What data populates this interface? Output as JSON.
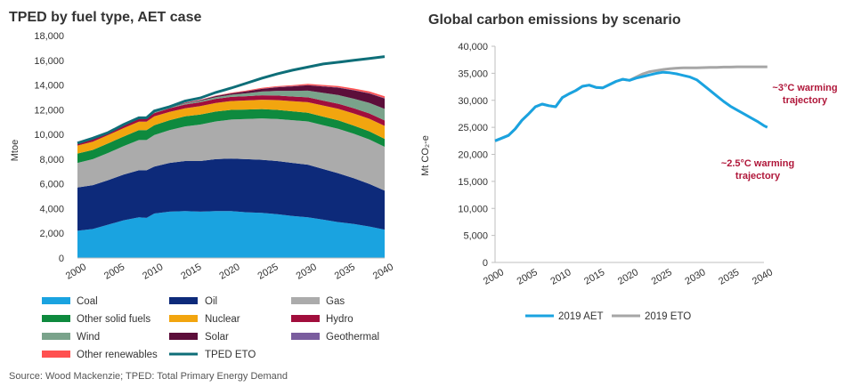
{
  "source_note": "Source: Wood Mackenzie; TPED: Total Primary Energy Demand",
  "chart_data": [
    {
      "type": "area",
      "stacked": true,
      "title": "TPED by fuel type, AET case",
      "xlabel": "",
      "ylabel": "Mtoe",
      "xlim": [
        2000,
        2040
      ],
      "ylim": [
        0,
        18000
      ],
      "x_ticks": [
        "2000",
        "2005",
        "2010",
        "2015",
        "2020",
        "2025",
        "2030",
        "2035",
        "2040"
      ],
      "y_ticks": [
        "0",
        "2,000",
        "4,000",
        "6,000",
        "8,000",
        "10,000",
        "12,000",
        "14,000",
        "16,000",
        "18,000"
      ],
      "x": [
        2000,
        2002,
        2004,
        2006,
        2008,
        2009,
        2010,
        2012,
        2014,
        2016,
        2018,
        2020,
        2022,
        2024,
        2026,
        2028,
        2030,
        2032,
        2034,
        2036,
        2038,
        2040
      ],
      "series": [
        {
          "name": "Coal",
          "color": "#1aa3e0",
          "values": [
            2200,
            2350,
            2700,
            3050,
            3300,
            3250,
            3600,
            3750,
            3800,
            3750,
            3800,
            3800,
            3700,
            3650,
            3550,
            3400,
            3300,
            3100,
            2900,
            2750,
            2550,
            2300
          ]
        },
        {
          "name": "Oil",
          "color": "#0d2a7a",
          "values": [
            3500,
            3550,
            3600,
            3700,
            3800,
            3850,
            3800,
            3950,
            4050,
            4100,
            4200,
            4250,
            4300,
            4300,
            4300,
            4300,
            4250,
            4100,
            3950,
            3700,
            3450,
            3150
          ]
        },
        {
          "name": "Gas",
          "color": "#ababab",
          "values": [
            2000,
            2100,
            2200,
            2300,
            2450,
            2450,
            2550,
            2650,
            2800,
            2950,
            3050,
            3150,
            3250,
            3350,
            3400,
            3450,
            3500,
            3550,
            3600,
            3600,
            3600,
            3550
          ]
        },
        {
          "name": "Other solid fuels",
          "color": "#0e8a3e",
          "values": [
            750,
            750,
            780,
            780,
            800,
            800,
            800,
            800,
            810,
            810,
            800,
            790,
            770,
            750,
            740,
            720,
            700,
            690,
            680,
            660,
            650,
            640
          ]
        },
        {
          "name": "Nuclear",
          "color": "#f2a50f",
          "values": [
            650,
            660,
            670,
            680,
            690,
            690,
            710,
            680,
            660,
            680,
            700,
            710,
            730,
            760,
            790,
            820,
            860,
            900,
            940,
            980,
            1020,
            1050
          ]
        },
        {
          "name": "Hydro",
          "color": "#a10e3c",
          "values": [
            230,
            235,
            240,
            250,
            260,
            265,
            270,
            285,
            300,
            315,
            330,
            340,
            350,
            360,
            370,
            380,
            390,
            400,
            410,
            420,
            430,
            440
          ]
        },
        {
          "name": "Wind",
          "color": "#7aa38b",
          "values": [
            5,
            8,
            12,
            20,
            30,
            40,
            50,
            70,
            90,
            110,
            140,
            170,
            230,
            300,
            380,
            460,
            540,
            620,
            700,
            780,
            860,
            940
          ]
        },
        {
          "name": "Solar",
          "color": "#5c0e3a",
          "values": [
            2,
            3,
            4,
            5,
            8,
            10,
            15,
            25,
            40,
            60,
            85,
            110,
            160,
            220,
            290,
            360,
            440,
            520,
            600,
            680,
            760,
            840
          ]
        },
        {
          "name": "Geothermal",
          "color": "#7a5d9e",
          "values": [
            5,
            5,
            6,
            6,
            7,
            7,
            7,
            8,
            8,
            9,
            10,
            10,
            12,
            14,
            16,
            18,
            20,
            22,
            24,
            26,
            28,
            30
          ]
        },
        {
          "name": "Other renewables",
          "color": "#ff5050",
          "values": [
            10,
            10,
            10,
            12,
            15,
            15,
            18,
            20,
            25,
            30,
            35,
            40,
            50,
            60,
            70,
            80,
            90,
            100,
            110,
            120,
            130,
            140
          ]
        }
      ],
      "overlay_line": {
        "name": "TPED ETO",
        "color": "#0e6e78",
        "values": [
          9300,
          9700,
          10150,
          10800,
          11350,
          11350,
          11900,
          12250,
          12700,
          12950,
          13400,
          13750,
          14150,
          14550,
          14900,
          15200,
          15450,
          15700,
          15850,
          16000,
          16150,
          16300
        ]
      },
      "legend": [
        "Coal",
        "Oil",
        "Gas",
        "Other solid fuels",
        "Nuclear",
        "Hydro",
        "Wind",
        "Solar",
        "Geothermal",
        "Other renewables",
        "TPED ETO"
      ],
      "legend_placement": "bottom"
    },
    {
      "type": "line",
      "title": "Global carbon emissions by scenario",
      "xlabel": "",
      "ylabel": "Mt CO₂-e",
      "xlim": [
        2000,
        2040
      ],
      "ylim": [
        0,
        40000
      ],
      "x_ticks": [
        "2000",
        "2005",
        "2010",
        "2015",
        "2020",
        "2025",
        "2030",
        "2035",
        "2040"
      ],
      "y_ticks": [
        "0",
        "5,000",
        "10,000",
        "15,000",
        "20,000",
        "25,000",
        "30,000",
        "35,000",
        "40,000"
      ],
      "x": [
        2000,
        2001,
        2002,
        2003,
        2004,
        2005,
        2006,
        2007,
        2008,
        2009,
        2010,
        2011,
        2012,
        2013,
        2014,
        2015,
        2016,
        2017,
        2018,
        2019,
        2020,
        2021,
        2022,
        2023,
        2024,
        2025,
        2026,
        2027,
        2028,
        2029,
        2030,
        2031,
        2032,
        2033,
        2034,
        2035,
        2036,
        2037,
        2038,
        2039,
        2040,
        2041
      ],
      "series": [
        {
          "name": "2019 AET",
          "color": "#1aa3e0",
          "values": [
            22500,
            23000,
            23500,
            24700,
            26300,
            27500,
            28800,
            29300,
            29000,
            28800,
            30500,
            31200,
            31800,
            32600,
            32800,
            32400,
            32300,
            32900,
            33500,
            33900,
            33700,
            34100,
            34400,
            34700,
            35000,
            35200,
            35100,
            34900,
            34600,
            34300,
            33800,
            32800,
            31800,
            30800,
            29800,
            28900,
            28200,
            27500,
            26800,
            26100,
            25300,
            25000
          ]
        },
        {
          "name": "2019 ETO",
          "color": "#a6a6a6",
          "values": [
            22500,
            23000,
            23500,
            24700,
            26300,
            27500,
            28800,
            29300,
            29000,
            28800,
            30500,
            31200,
            31800,
            32600,
            32800,
            32400,
            32300,
            32900,
            33500,
            33900,
            33700,
            34300,
            34900,
            35300,
            35500,
            35700,
            35850,
            35950,
            36000,
            36000,
            36000,
            36050,
            36100,
            36100,
            36150,
            36150,
            36200,
            36200,
            36200,
            36200,
            36200,
            36200
          ]
        }
      ],
      "legend": [
        "2019 AET",
        "2019 ETO"
      ],
      "legend_placement": "bottom",
      "annotations": [
        {
          "lines": [
            "~3°C warming",
            "trajectory"
          ],
          "points_to": "2019 ETO"
        },
        {
          "lines": [
            "~2.5°C warming",
            "trajectory"
          ],
          "points_to": "2019 AET"
        }
      ]
    }
  ]
}
